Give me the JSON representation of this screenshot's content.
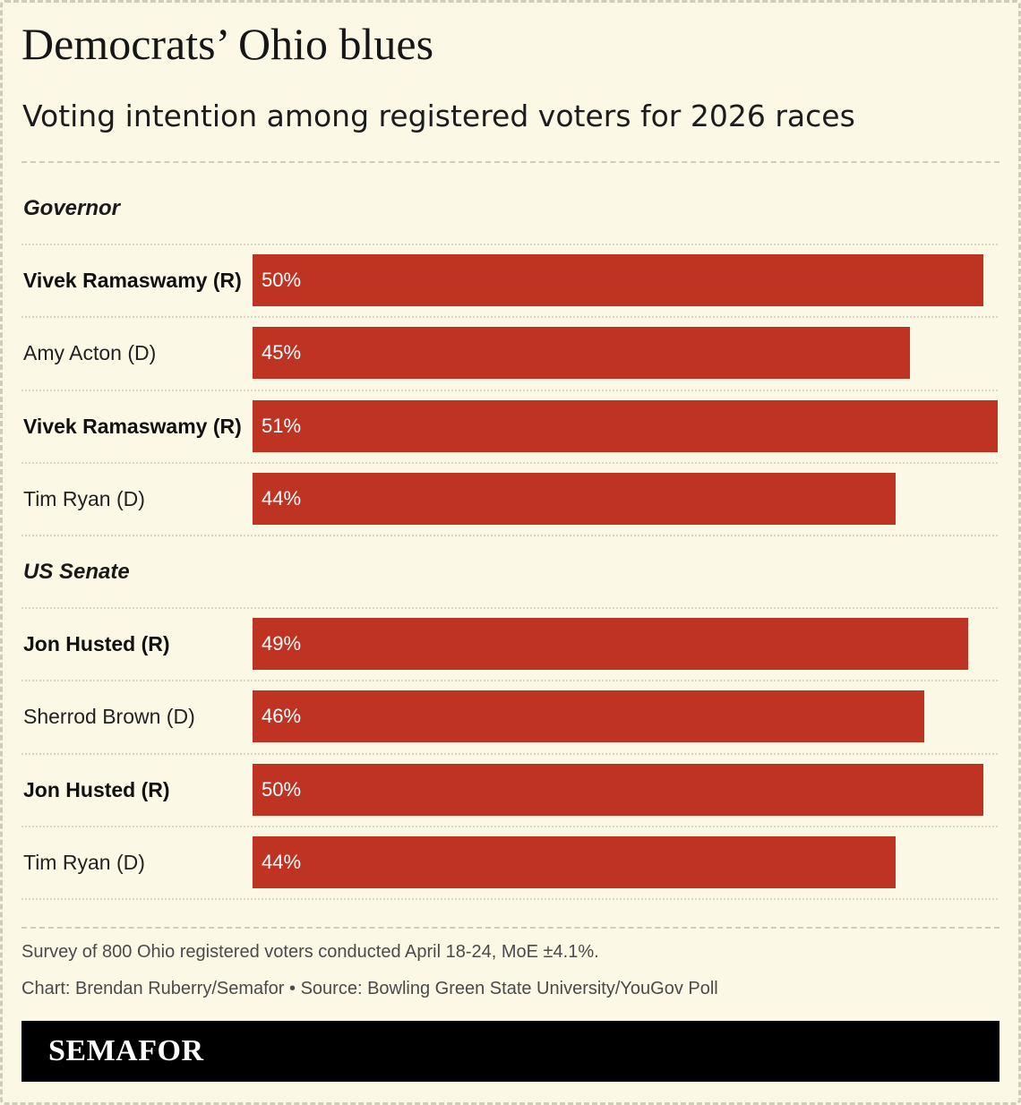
{
  "title": "Democrats’ Ohio blues",
  "subtitle": "Voting intention among registered voters for 2026 races",
  "colors": {
    "bar": "#bf3322",
    "background": "#fbf8e6",
    "brand_bar": "#000000"
  },
  "chart_data": {
    "type": "bar",
    "orientation": "horizontal",
    "unit": "%",
    "xlim": [
      0,
      51
    ],
    "groups": [
      {
        "label": "Governor",
        "rows": [
          {
            "label": "Vivek Ramaswamy (R)",
            "value": 50,
            "value_label": "50%",
            "bold": true
          },
          {
            "label": "Amy Acton (D)",
            "value": 45,
            "value_label": "45%",
            "bold": false
          },
          {
            "label": "Vivek Ramaswamy (R)",
            "value": 51,
            "value_label": "51%",
            "bold": true
          },
          {
            "label": "Tim Ryan (D)",
            "value": 44,
            "value_label": "44%",
            "bold": false
          }
        ]
      },
      {
        "label": "US Senate",
        "rows": [
          {
            "label": "Jon Husted (R)",
            "value": 49,
            "value_label": "49%",
            "bold": true
          },
          {
            "label": "Sherrod Brown (D)",
            "value": 46,
            "value_label": "46%",
            "bold": false
          },
          {
            "label": "Jon Husted (R)",
            "value": 50,
            "value_label": "50%",
            "bold": true
          },
          {
            "label": "Tim Ryan (D)",
            "value": 44,
            "value_label": "44%",
            "bold": false
          }
        ]
      }
    ]
  },
  "footer": {
    "note": "Survey of 800 Ohio registered voters conducted April 18-24, MoE ±4.1%.",
    "source": "Chart: Brendan Ruberry/Semafor • Source: Bowling Green State University/YouGov Poll",
    "brand": "SEMAFOR"
  }
}
